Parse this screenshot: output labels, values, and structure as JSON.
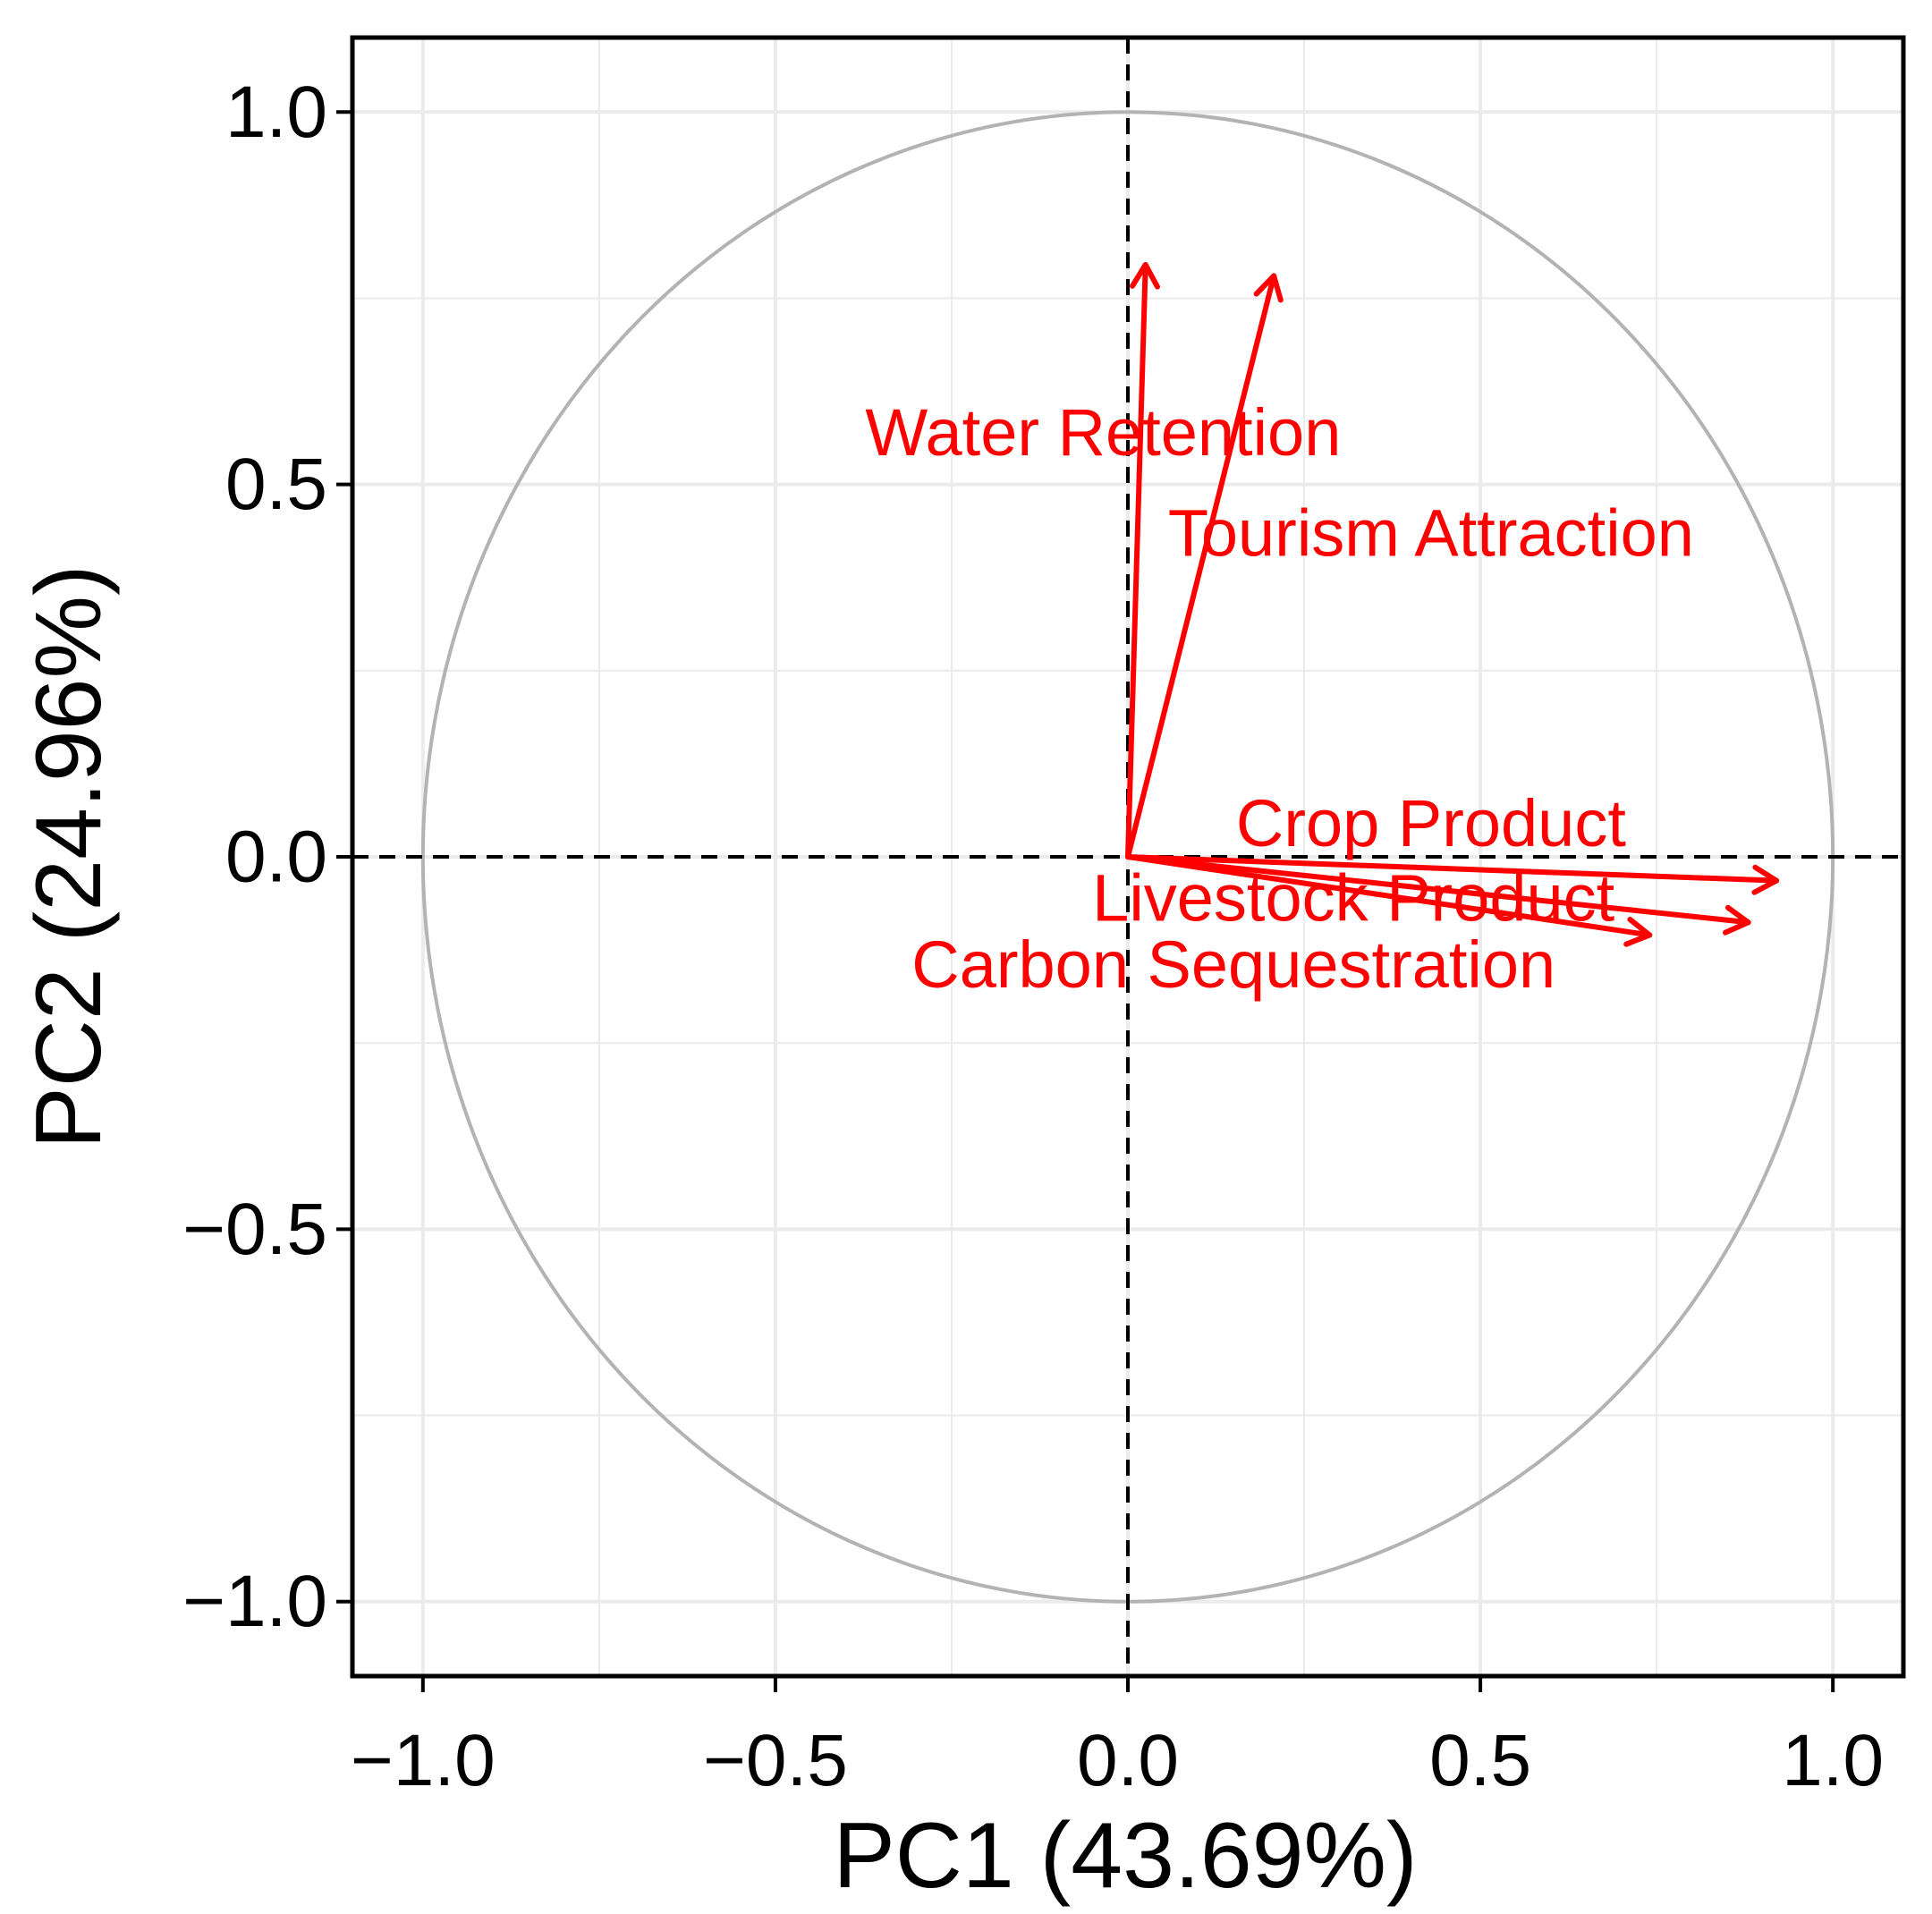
{
  "chart_data": {
    "type": "pca-correlation-circle",
    "title": "",
    "xlabel": "PC1 (43.69%)",
    "ylabel": "PC2 (24.96%)",
    "xlim": [
      -1.1,
      1.1
    ],
    "ylim": [
      -1.1,
      1.1
    ],
    "grid": true,
    "unit_circle": true,
    "reference_lines": {
      "x": 0,
      "y": 0,
      "style": "dashed"
    },
    "x_ticks": [
      {
        "value": -1.0,
        "label": "−1.0"
      },
      {
        "value": -0.5,
        "label": "−0.5"
      },
      {
        "value": 0.0,
        "label": "0.0"
      },
      {
        "value": 0.5,
        "label": "0.5"
      },
      {
        "value": 1.0,
        "label": "1.0"
      }
    ],
    "y_ticks": [
      {
        "value": 1.0,
        "label": "1.0"
      },
      {
        "value": 0.5,
        "label": "0.5"
      },
      {
        "value": 0.0,
        "label": "0.0"
      },
      {
        "value": -0.5,
        "label": "−0.5"
      },
      {
        "value": -1.0,
        "label": "−1.0"
      }
    ],
    "variables": [
      {
        "name": "Water Retention",
        "x": 0.025,
        "y": 0.795,
        "label_x": -0.035,
        "label_y": 0.57
      },
      {
        "name": "Tourism Attraction",
        "x": 0.207,
        "y": 0.78,
        "label_x": 0.43,
        "label_y": 0.435
      },
      {
        "name": "Crop Product",
        "x": 0.92,
        "y": -0.032,
        "label_x": 0.43,
        "label_y": 0.045
      },
      {
        "name": "Livestock Product",
        "x": 0.88,
        "y": -0.088,
        "label_x": 0.32,
        "label_y": -0.055
      },
      {
        "name": "Carbon Sequestration",
        "x": 0.74,
        "y": -0.105,
        "label_x": 0.15,
        "label_y": -0.145
      }
    ],
    "colors": {
      "arrow": "#ff0000",
      "label": "#ff0000",
      "circle": "#b3b3b3",
      "grid": "#ebebeb",
      "axis_line": "#000000"
    }
  }
}
